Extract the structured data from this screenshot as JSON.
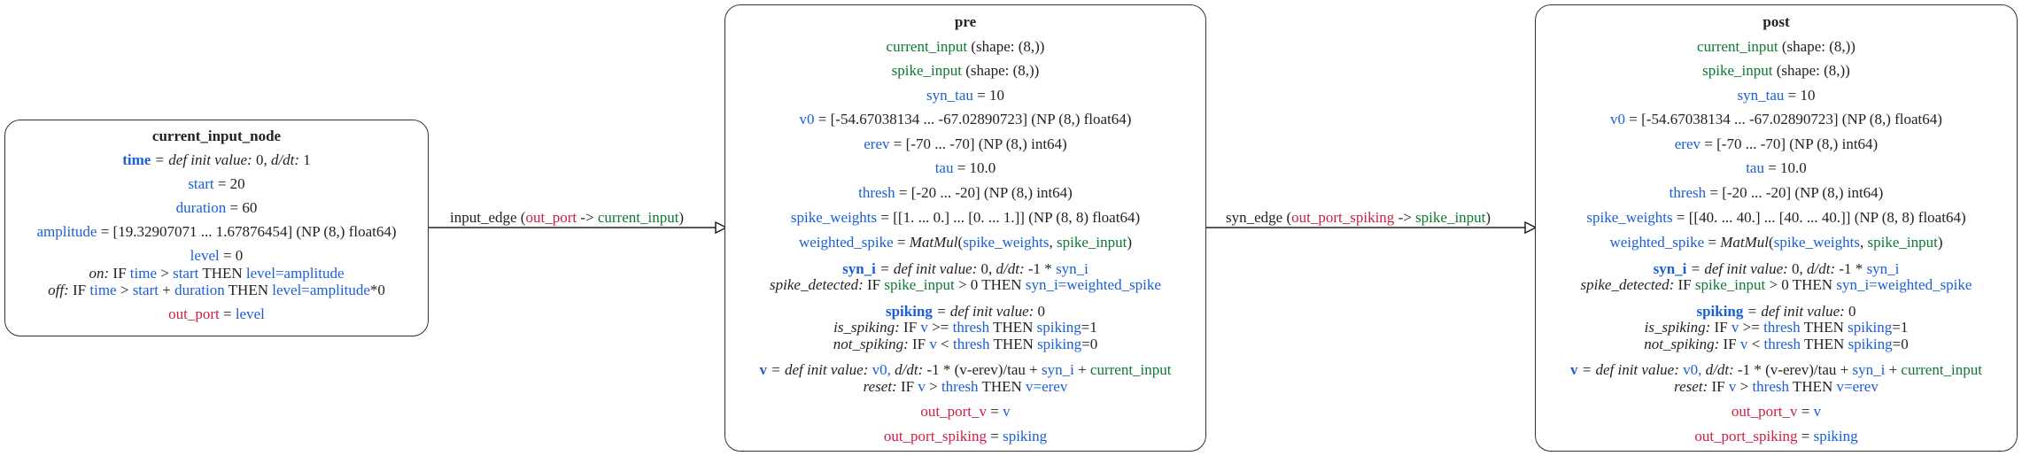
{
  "colors": {
    "state": "#1a5fd6",
    "input": "#0b7a32",
    "output": "#cc1f44",
    "border": "#333333"
  },
  "nodes": {
    "current_input_node": {
      "title": "current_input_node",
      "time": "time",
      "time_def": "= def init value:",
      "time_rest": "0,",
      "time_ddt": "d/dt:",
      "time_ddt_val": "1",
      "start_name": "start",
      "start_val": "= 20",
      "duration_name": "duration",
      "duration_val": "= 60",
      "amplitude_name": "amplitude",
      "amplitude_val": "= [19.32907071 ...  1.67876454] (NP (8,) float64)",
      "level_name": "level",
      "level_val": "= 0",
      "on_label": "on:",
      "on_if": "IF",
      "on_time": "time",
      "on_gt": ">",
      "on_start": "start",
      "on_then": "THEN",
      "on_assign": "level=amplitude",
      "off_label": "off:",
      "off_if": "IF",
      "off_time": "time",
      "off_gt": ">",
      "off_start": "start",
      "off_plus": "+",
      "off_duration": "duration",
      "off_then": "THEN",
      "off_assign": "level=amplitude",
      "off_tail": "*0",
      "out_name": "out_port",
      "out_eq": "=",
      "out_val": "level"
    },
    "pre": {
      "title": "pre",
      "current_input": "current_input",
      "current_input_shape": "(shape: (8,))",
      "spike_input": "spike_input",
      "spike_input_shape": "(shape: (8,))",
      "syn_tau": "syn_tau",
      "syn_tau_val": "= 10",
      "v0": "v0",
      "v0_val": "= [-54.67038134 ... -67.02890723] (NP (8,) float64)",
      "erev": "erev",
      "erev_val": "= [-70 ... -70] (NP (8,) int64)",
      "tau": "tau",
      "tau_val": "= 10.0",
      "thresh": "thresh",
      "thresh_val": "= [-20 ... -20] (NP (8,) int64)",
      "spike_weights": "spike_weights",
      "spike_weights_val": "= [[1. ... 0.] ... [0. ... 1.]] (NP (8, 8) float64)",
      "weighted_spike": "weighted_spike",
      "ws_eq": "=",
      "ws_fn": "MatMul",
      "ws_open": "(",
      "ws_arg1": "spike_weights",
      "ws_comma": ",",
      "ws_arg2": "spike_input",
      "ws_close": ")",
      "syn_i": "syn_i",
      "syn_i_def": "= def init value:",
      "syn_i_rest": "0,",
      "syn_i_ddt": "d/dt:",
      "syn_i_ddt_val": "-1 *",
      "syn_i_ddt_var": "syn_i",
      "sd_label": "spike_detected:",
      "sd_if": "IF",
      "sd_var": "spike_input",
      "sd_cond": "> 0 THEN",
      "sd_assign": "syn_i=weighted_spike",
      "spiking": "spiking",
      "spiking_def": "= def init value:",
      "spiking_rest": "0",
      "is_label": "is_spiking:",
      "is_if": "IF",
      "is_v": "v",
      "is_op": ">=",
      "is_thresh": "thresh",
      "is_then": "THEN",
      "is_assign": "spiking",
      "is_val": "=1",
      "not_label": "not_spiking:",
      "not_if": "IF",
      "not_v": "v",
      "not_op": "<",
      "not_thresh": "thresh",
      "not_then": "THEN",
      "not_assign": "spiking",
      "not_val": "=0",
      "v": "v",
      "v_def": "= def init value:",
      "v_init": "v0,",
      "v_ddt": "d/dt:",
      "v_ddt_val": "-1 * (v-erev)/tau +",
      "v_syn": "syn_i",
      "v_plus": "+",
      "v_ci": "current_input",
      "reset_label": "reset:",
      "reset_if": "IF",
      "reset_v": "v",
      "reset_op": ">",
      "reset_thresh": "thresh",
      "reset_then": "THEN",
      "reset_assign": "v=erev",
      "out_v": "out_port_v",
      "out_v_eq": "=",
      "out_v_val": "v",
      "out_spiking": "out_port_spiking",
      "out_spiking_eq": "=",
      "out_spiking_val": "spiking"
    },
    "post": {
      "title": "post",
      "current_input": "current_input",
      "current_input_shape": "(shape: (8,))",
      "spike_input": "spike_input",
      "spike_input_shape": "(shape: (8,))",
      "syn_tau": "syn_tau",
      "syn_tau_val": "= 10",
      "v0": "v0",
      "v0_val": "= [-54.67038134 ... -67.02890723] (NP (8,) float64)",
      "erev": "erev",
      "erev_val": "= [-70 ... -70] (NP (8,) int64)",
      "tau": "tau",
      "tau_val": "= 10.0",
      "thresh": "thresh",
      "thresh_val": "= [-20 ... -20] (NP (8,) int64)",
      "spike_weights": "spike_weights",
      "spike_weights_val": "= [[40. ... 40.] ... [40. ... 40.]] (NP (8, 8) float64)",
      "weighted_spike": "weighted_spike",
      "ws_eq": "=",
      "ws_fn": "MatMul",
      "ws_open": "(",
      "ws_arg1": "spike_weights",
      "ws_comma": ",",
      "ws_arg2": "spike_input",
      "ws_close": ")",
      "syn_i": "syn_i",
      "syn_i_def": "= def init value:",
      "syn_i_rest": "0,",
      "syn_i_ddt": "d/dt:",
      "syn_i_ddt_val": "-1 *",
      "syn_i_ddt_var": "syn_i",
      "sd_label": "spike_detected:",
      "sd_if": "IF",
      "sd_var": "spike_input",
      "sd_cond": "> 0 THEN",
      "sd_assign": "syn_i=weighted_spike",
      "spiking": "spiking",
      "spiking_def": "= def init value:",
      "spiking_rest": "0",
      "is_label": "is_spiking:",
      "is_if": "IF",
      "is_v": "v",
      "is_op": ">=",
      "is_thresh": "thresh",
      "is_then": "THEN",
      "is_assign": "spiking",
      "is_val": "=1",
      "not_label": "not_spiking:",
      "not_if": "IF",
      "not_v": "v",
      "not_op": "<",
      "not_thresh": "thresh",
      "not_then": "THEN",
      "not_assign": "spiking",
      "not_val": "=0",
      "v": "v",
      "v_def": "= def init value:",
      "v_init": "v0,",
      "v_ddt": "d/dt:",
      "v_ddt_val": "-1 * (v-erev)/tau +",
      "v_syn": "syn_i",
      "v_plus": "+",
      "v_ci": "current_input",
      "reset_label": "reset:",
      "reset_if": "IF",
      "reset_v": "v",
      "reset_op": ">",
      "reset_thresh": "thresh",
      "reset_then": "THEN",
      "reset_assign": "v=erev",
      "out_v": "out_port_v",
      "out_v_eq": "=",
      "out_v_val": "v",
      "out_spiking": "out_port_spiking",
      "out_spiking_eq": "=",
      "out_spiking_val": "spiking"
    }
  },
  "edges": {
    "input_edge": {
      "name": "input_edge",
      "open": "(",
      "src": "out_port",
      "arrow": "->",
      "dst": "current_input",
      "close": ")"
    },
    "syn_edge": {
      "name": "syn_edge",
      "open": "(",
      "src": "out_port_spiking",
      "arrow": "->",
      "dst": "spike_input",
      "close": ")"
    }
  }
}
